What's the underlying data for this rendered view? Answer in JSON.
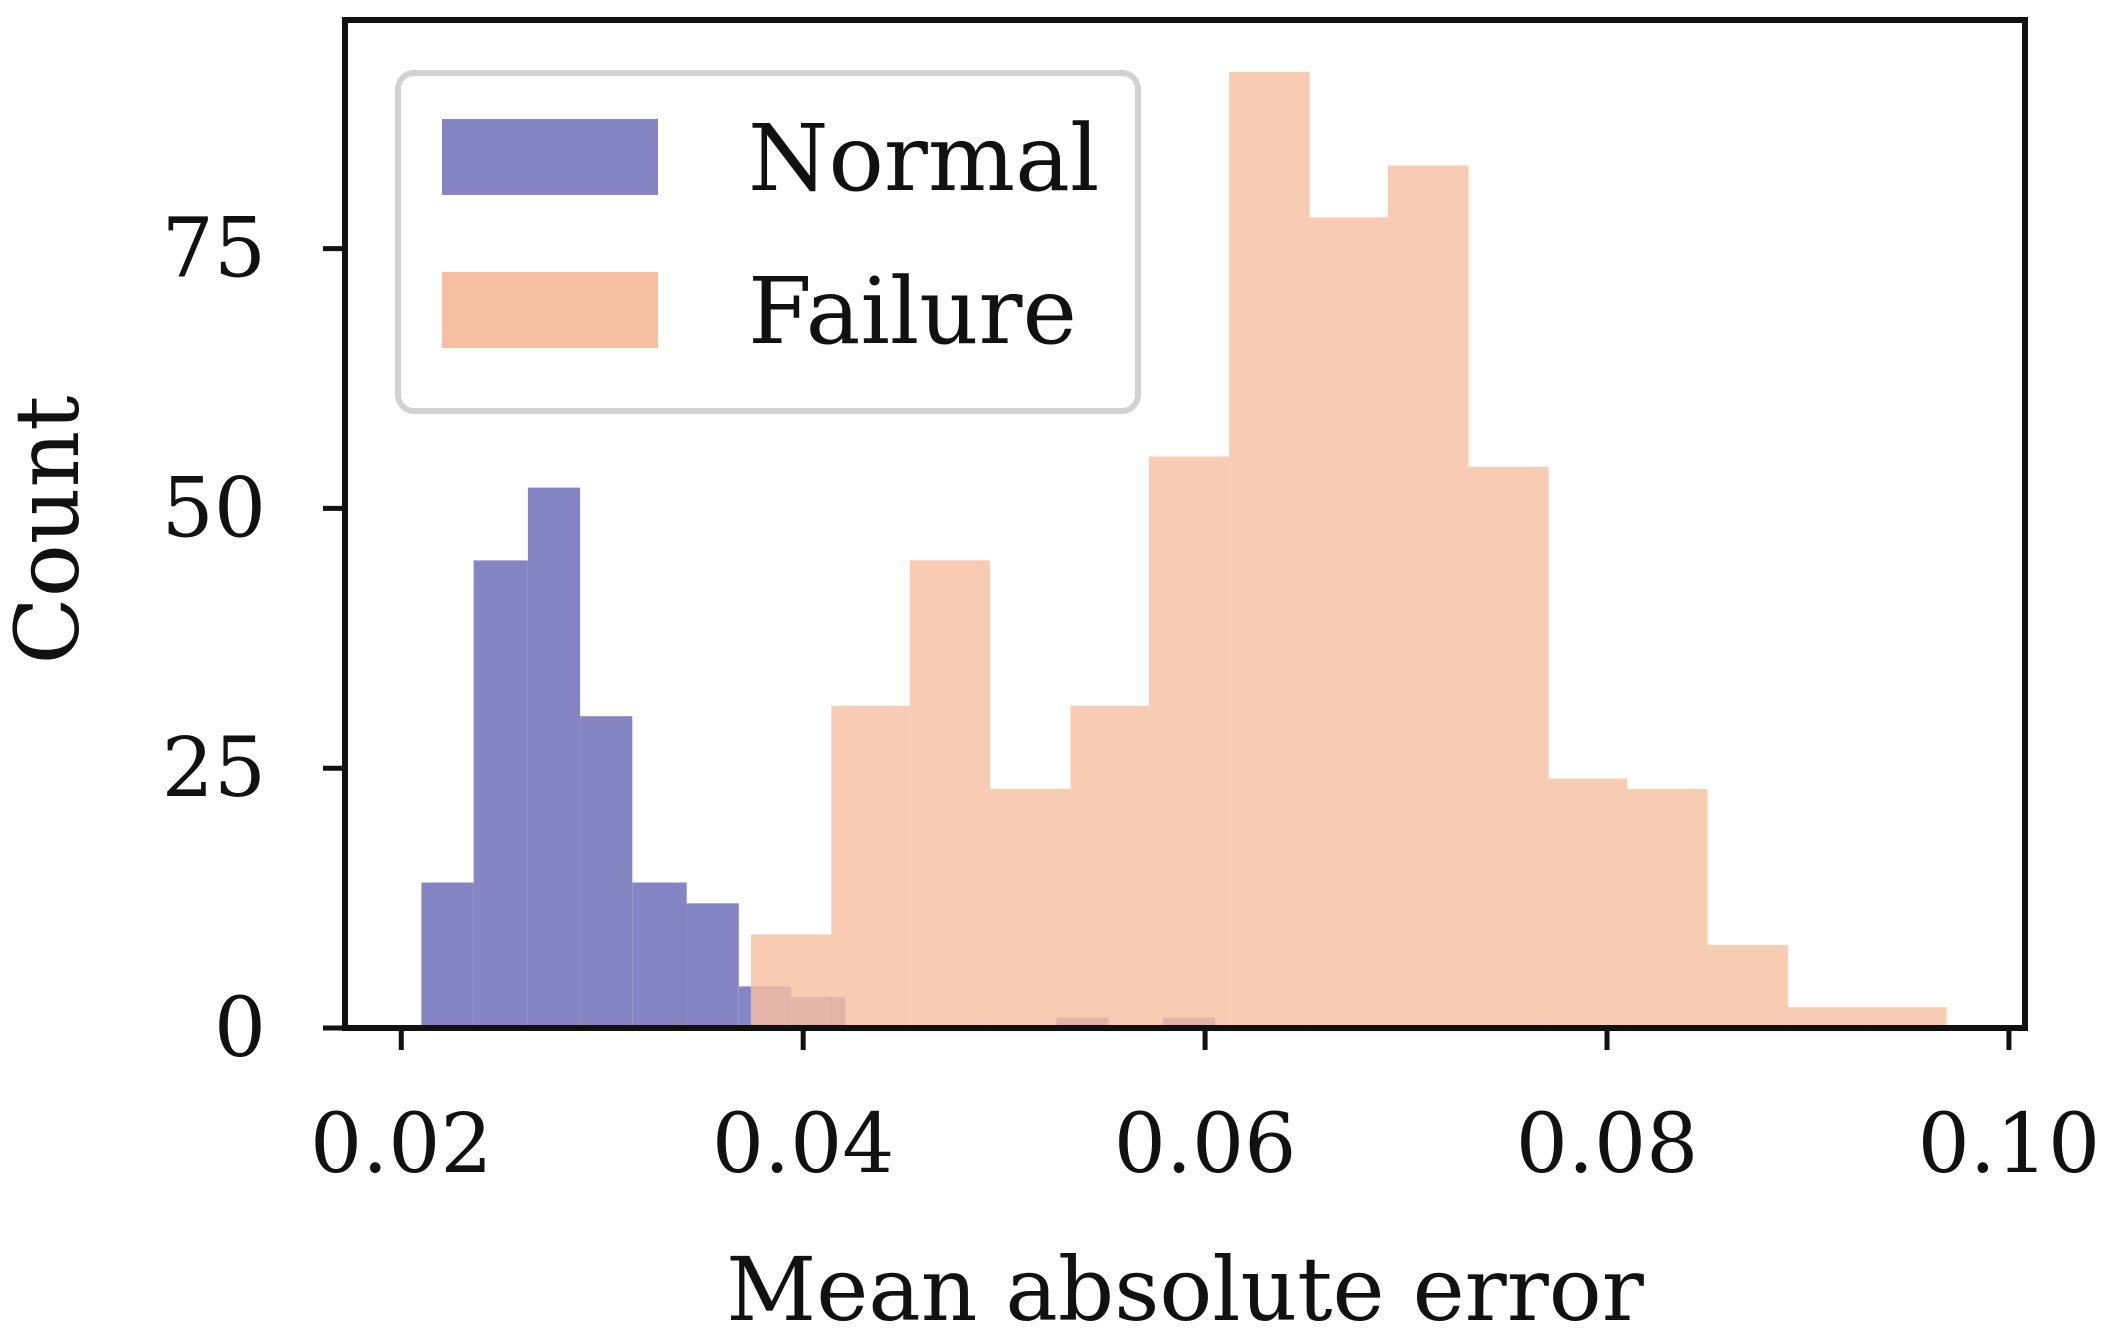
{
  "chart_data": {
    "type": "histogram",
    "xlabel": "Mean absolute error",
    "ylabel": "Count",
    "xlim": [
      0.0172,
      0.1008
    ],
    "ylim": [
      0,
      97
    ],
    "x_ticks": [
      {
        "value": 0.02,
        "label": "0.02"
      },
      {
        "value": 0.04,
        "label": "0.04"
      },
      {
        "value": 0.06,
        "label": "0.06"
      },
      {
        "value": 0.08,
        "label": "0.08"
      },
      {
        "value": 0.1,
        "label": "0.10"
      }
    ],
    "y_ticks": [
      {
        "value": 0,
        "label": "0"
      },
      {
        "value": 25,
        "label": "25"
      },
      {
        "value": 50,
        "label": "50"
      },
      {
        "value": 75,
        "label": "75"
      }
    ],
    "legend": {
      "position": "upper left"
    },
    "series": [
      {
        "name": "Normal",
        "color": "#8585c4",
        "bins": [
          {
            "x0": 0.021,
            "x1": 0.0236,
            "count": 14
          },
          {
            "x0": 0.0236,
            "x1": 0.0263,
            "count": 45
          },
          {
            "x0": 0.0263,
            "x1": 0.0289,
            "count": 52
          },
          {
            "x0": 0.0289,
            "x1": 0.0315,
            "count": 30
          },
          {
            "x0": 0.0315,
            "x1": 0.0342,
            "count": 14
          },
          {
            "x0": 0.0342,
            "x1": 0.0368,
            "count": 12
          },
          {
            "x0": 0.0368,
            "x1": 0.0394,
            "count": 4
          },
          {
            "x0": 0.0394,
            "x1": 0.0421,
            "count": 3
          },
          {
            "x0": 0.0526,
            "x1": 0.0552,
            "count": 1
          },
          {
            "x0": 0.0579,
            "x1": 0.0605,
            "count": 1
          }
        ]
      },
      {
        "name": "Failure",
        "color": "#f6bfa2",
        "bins": [
          {
            "x0": 0.0374,
            "x1": 0.0414,
            "count": 9
          },
          {
            "x0": 0.0414,
            "x1": 0.0453,
            "count": 31
          },
          {
            "x0": 0.0453,
            "x1": 0.0493,
            "count": 45
          },
          {
            "x0": 0.0493,
            "x1": 0.0533,
            "count": 23
          },
          {
            "x0": 0.0533,
            "x1": 0.0572,
            "count": 31
          },
          {
            "x0": 0.0572,
            "x1": 0.0612,
            "count": 55
          },
          {
            "x0": 0.0612,
            "x1": 0.0652,
            "count": 92
          },
          {
            "x0": 0.0652,
            "x1": 0.0691,
            "count": 78
          },
          {
            "x0": 0.0691,
            "x1": 0.0731,
            "count": 83
          },
          {
            "x0": 0.0731,
            "x1": 0.0771,
            "count": 54
          },
          {
            "x0": 0.0771,
            "x1": 0.081,
            "count": 24
          },
          {
            "x0": 0.081,
            "x1": 0.085,
            "count": 23
          },
          {
            "x0": 0.085,
            "x1": 0.089,
            "count": 8
          },
          {
            "x0": 0.089,
            "x1": 0.0929,
            "count": 2
          },
          {
            "x0": 0.0929,
            "x1": 0.0969,
            "count": 2
          }
        ]
      }
    ]
  }
}
